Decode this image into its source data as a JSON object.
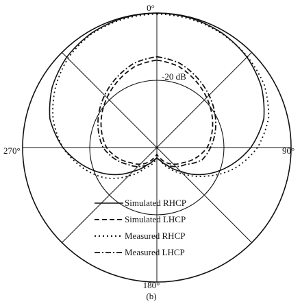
{
  "figure": {
    "caption": "(b)"
  },
  "chart_data": {
    "type": "polar-line",
    "angular_labels": [
      {
        "angle": 0,
        "text": "0°"
      },
      {
        "angle": 90,
        "text": "90°"
      },
      {
        "angle": 180,
        "text": "180°"
      },
      {
        "angle": 270,
        "text": "270°"
      }
    ],
    "radial_range_db": [
      -40,
      0
    ],
    "radial_ring_label": "-20 dB",
    "grid": true,
    "legend_position": "bottom-right",
    "series": [
      {
        "name": "Simulated RHCP",
        "color": "#111111",
        "style": "solid",
        "points_deg_db": [
          [
            0,
            0
          ],
          [
            15,
            -0.2
          ],
          [
            30,
            -0.8
          ],
          [
            45,
            -2
          ],
          [
            60,
            -4
          ],
          [
            75,
            -7
          ],
          [
            90,
            -12
          ],
          [
            105,
            -18
          ],
          [
            120,
            -24
          ],
          [
            135,
            -30
          ],
          [
            150,
            -34
          ],
          [
            165,
            -36
          ],
          [
            180,
            -37
          ],
          [
            195,
            -36
          ],
          [
            210,
            -34
          ],
          [
            225,
            -30
          ],
          [
            240,
            -24
          ],
          [
            255,
            -18
          ],
          [
            270,
            -12
          ],
          [
            285,
            -7
          ],
          [
            300,
            -4
          ],
          [
            315,
            -2
          ],
          [
            330,
            -0.8
          ],
          [
            345,
            -0.2
          ]
        ]
      },
      {
        "name": "Simulated LHCP",
        "color": "#111111",
        "style": "dashed",
        "points_deg_db": [
          [
            0,
            -14
          ],
          [
            15,
            -15
          ],
          [
            30,
            -17
          ],
          [
            45,
            -19
          ],
          [
            60,
            -21
          ],
          [
            75,
            -23
          ],
          [
            90,
            -25
          ],
          [
            105,
            -28
          ],
          [
            120,
            -31
          ],
          [
            135,
            -33
          ],
          [
            150,
            -35
          ],
          [
            165,
            -37
          ],
          [
            180,
            -38
          ],
          [
            195,
            -37
          ],
          [
            210,
            -35
          ],
          [
            225,
            -33
          ],
          [
            240,
            -31
          ],
          [
            255,
            -28
          ],
          [
            270,
            -25
          ],
          [
            285,
            -23
          ],
          [
            300,
            -21
          ],
          [
            315,
            -19
          ],
          [
            330,
            -17
          ],
          [
            345,
            -15
          ]
        ]
      },
      {
        "name": "Measured RHCP",
        "color": "#111111",
        "style": "dotted",
        "points_deg_db": [
          [
            0,
            -0.3
          ],
          [
            15,
            -0.5
          ],
          [
            30,
            -1
          ],
          [
            45,
            -1.8
          ],
          [
            60,
            -3
          ],
          [
            75,
            -5.5
          ],
          [
            90,
            -10
          ],
          [
            105,
            -16
          ],
          [
            120,
            -23
          ],
          [
            135,
            -29
          ],
          [
            150,
            -33
          ],
          [
            165,
            -36
          ],
          [
            180,
            -37
          ],
          [
            195,
            -35
          ],
          [
            210,
            -33
          ],
          [
            225,
            -28
          ],
          [
            240,
            -22
          ],
          [
            255,
            -17
          ],
          [
            270,
            -12
          ],
          [
            285,
            -8
          ],
          [
            300,
            -5
          ],
          [
            315,
            -2.5
          ],
          [
            330,
            -1
          ],
          [
            345,
            -0.5
          ]
        ]
      },
      {
        "name": "Measured LHCP",
        "color": "#111111",
        "style": "dashdot",
        "points_deg_db": [
          [
            0,
            -13
          ],
          [
            15,
            -14
          ],
          [
            30,
            -16
          ],
          [
            45,
            -18
          ],
          [
            60,
            -20
          ],
          [
            75,
            -22
          ],
          [
            90,
            -24
          ],
          [
            105,
            -26
          ],
          [
            120,
            -30
          ],
          [
            135,
            -32
          ],
          [
            150,
            -34
          ],
          [
            165,
            -36
          ],
          [
            180,
            -37
          ],
          [
            195,
            -36
          ],
          [
            210,
            -34
          ],
          [
            225,
            -32
          ],
          [
            240,
            -30
          ],
          [
            255,
            -27
          ],
          [
            270,
            -24
          ],
          [
            285,
            -22
          ],
          [
            300,
            -20
          ],
          [
            315,
            -18
          ],
          [
            330,
            -16
          ],
          [
            345,
            -14
          ]
        ]
      }
    ]
  }
}
